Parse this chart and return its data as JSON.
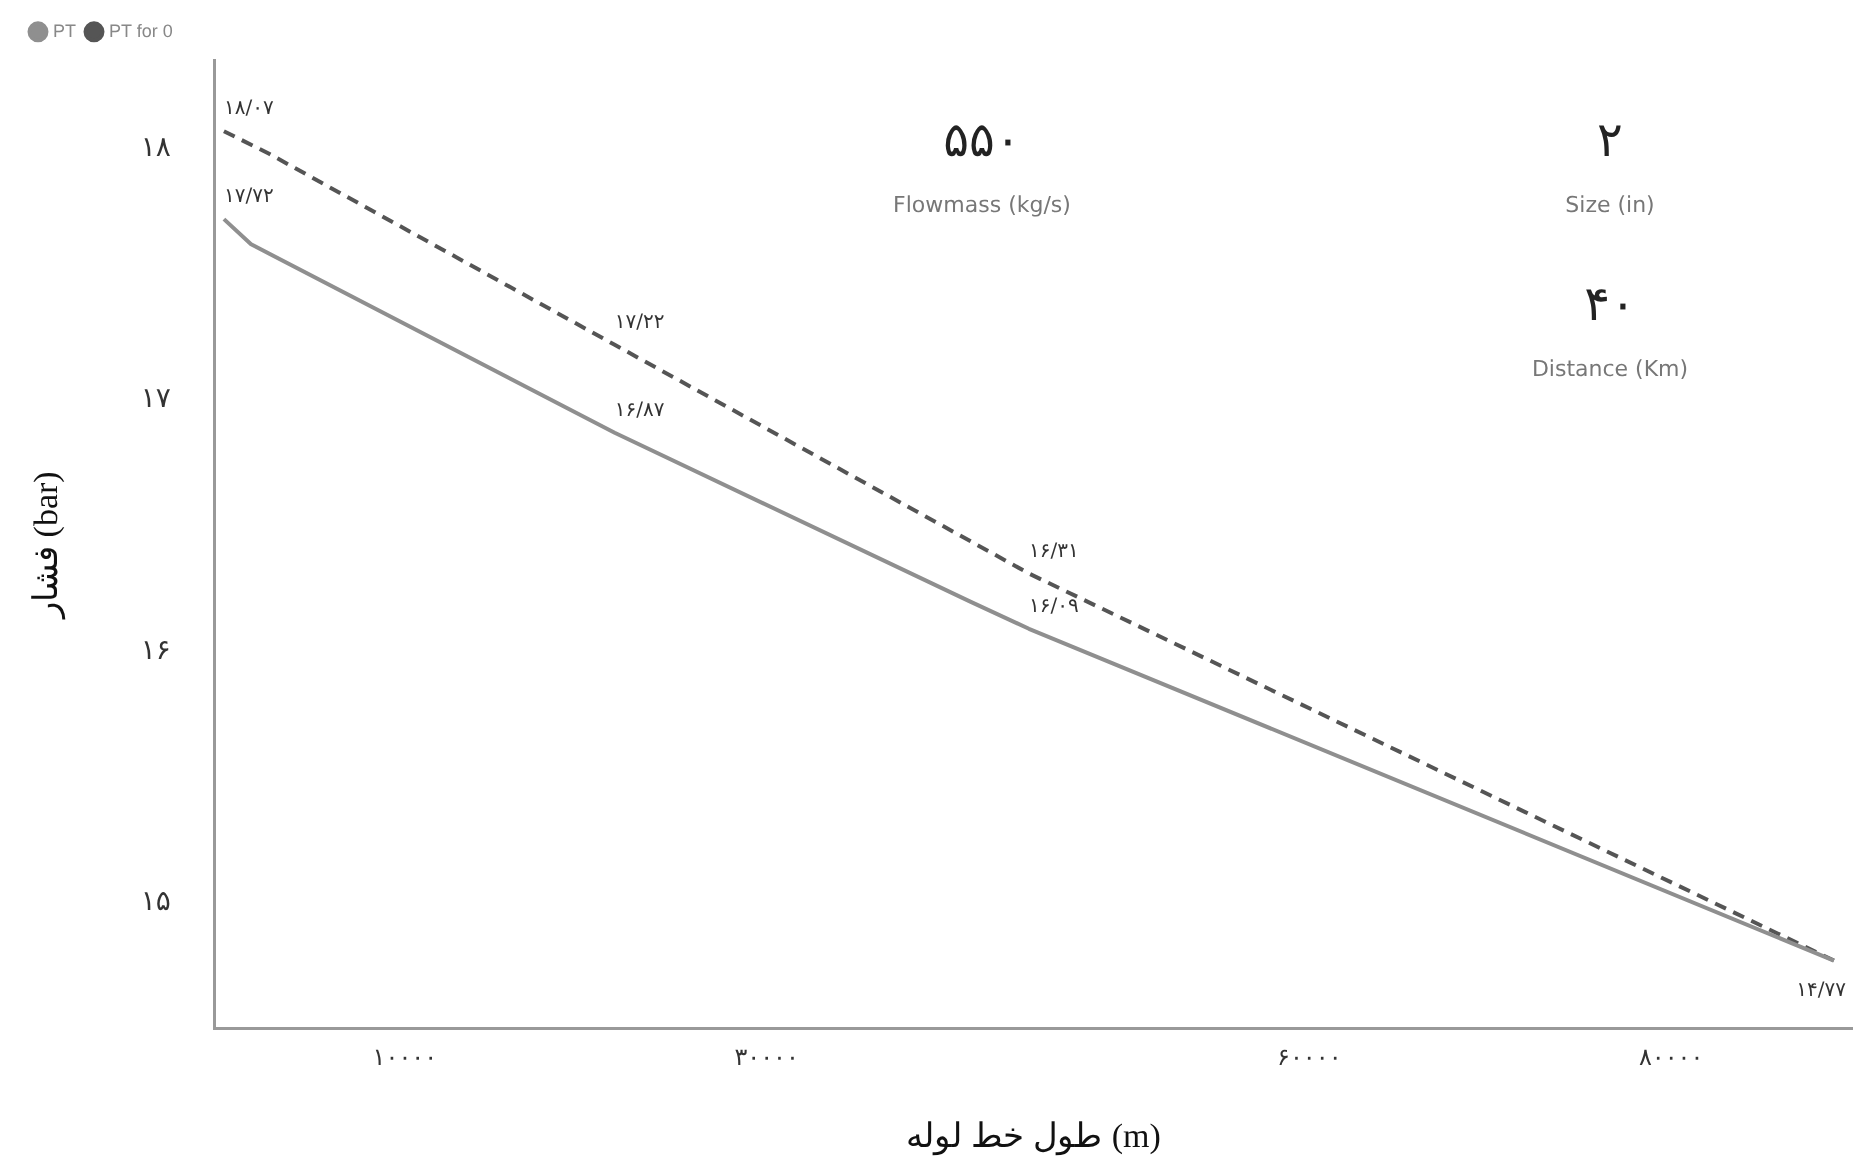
{
  "chart_data": {
    "type": "line",
    "xlabel": "طول خط لوله (m)",
    "ylabel": "فشار (bar)",
    "xlim": [
      -500,
      90000
    ],
    "ylim": [
      14.5,
      18.35
    ],
    "xticks": [
      {
        "value": 10000,
        "label": "۱۰۰۰۰"
      },
      {
        "value": 30000,
        "label": "۳۰۰۰۰"
      },
      {
        "value": 60000,
        "label": "۶۰۰۰۰"
      },
      {
        "value": 80000,
        "label": "۸۰۰۰۰"
      }
    ],
    "yticks": [
      {
        "value": 15,
        "label": "۱۵"
      },
      {
        "value": 16,
        "label": "۱۶"
      },
      {
        "value": 17,
        "label": "۱۷"
      },
      {
        "value": 18,
        "label": "۱۸"
      }
    ],
    "series": [
      {
        "name": "PT",
        "color": "#8f8f8f",
        "line_style": "solid",
        "x": [
          0,
          1500,
          21600,
          41200,
          44500,
          89000
        ],
        "values": [
          17.72,
          17.62,
          16.87,
          16.2,
          16.09,
          14.77
        ],
        "value_labels": [
          "۱۷/۷۲",
          null,
          "۱۶/۸۷",
          null,
          "۱۶/۰۹",
          "۱۴/۷۷"
        ]
      },
      {
        "name": "PT for 0",
        "color": "#555555",
        "line_style": "dashed",
        "x": [
          0,
          2500,
          21600,
          44500,
          89000
        ],
        "values": [
          18.07,
          17.98,
          17.22,
          16.31,
          14.77
        ],
        "value_labels": [
          "۱۸/۰۷",
          null,
          "۱۷/۲۲",
          "۱۶/۳۱",
          null
        ]
      }
    ],
    "legend": "top left",
    "marker": "none",
    "grid": false,
    "annotations": [
      "۵۵۰",
      "Flowmass (kg/s)",
      "۲",
      "Size (in)",
      "۴۰",
      "Distance (Km)"
    ]
  }
}
